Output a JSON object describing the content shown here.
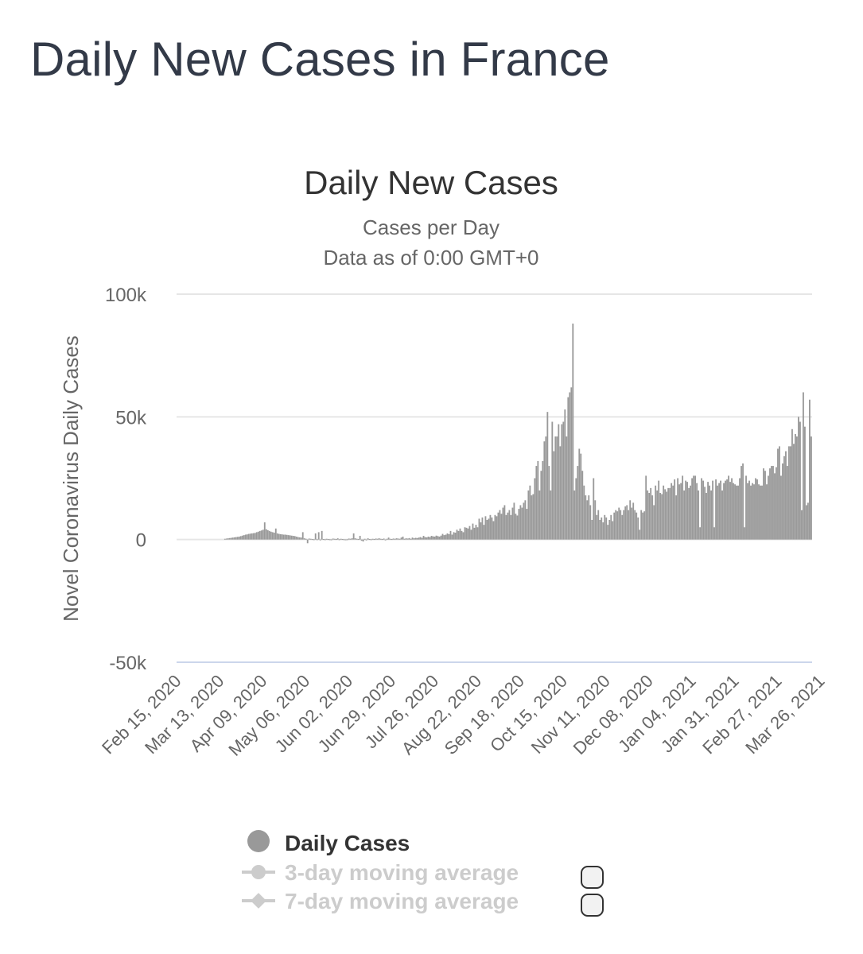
{
  "page_title": "Daily New Cases in France",
  "colors": {
    "bar": "#999999",
    "grid": "#e6e6e6",
    "text": "#333333",
    "muted": "#666666",
    "legend_off": "#cccccc"
  },
  "chart_data": {
    "type": "bar",
    "title": "Daily New Cases",
    "subtitle": [
      "Cases per Day",
      "Data as of 0:00 GMT+0"
    ],
    "ylabel": "Novel Coronavirus Daily Cases",
    "xlabel": "",
    "ylim": [
      -50000,
      100000
    ],
    "y_ticks": [
      -50000,
      0,
      50000,
      100000
    ],
    "y_tick_labels": [
      "-50k",
      "0",
      "50k",
      "100k"
    ],
    "x_tick_labels": [
      "Feb 15, 2020",
      "Mar 13, 2020",
      "Apr 09, 2020",
      "May 06, 2020",
      "Jun 02, 2020",
      "Jun 29, 2020",
      "Jul 26, 2020",
      "Aug 22, 2020",
      "Sep 18, 2020",
      "Oct 15, 2020",
      "Nov 11, 2020",
      "Dec 08, 2020",
      "Jan 04, 2021",
      "Jan 31, 2021",
      "Feb 27, 2021",
      "Mar 26, 2021"
    ],
    "x_start_date": "2020-02-15",
    "grid": true,
    "legend_position": "bottom-center",
    "series": [
      {
        "name": "Daily Cases",
        "active": true,
        "values": [
          0,
          0,
          0,
          0,
          0,
          0,
          0,
          0,
          0,
          0,
          0,
          0,
          0,
          0,
          0,
          0,
          0,
          0,
          0,
          0,
          0,
          0,
          0,
          0,
          0,
          0,
          0,
          0,
          0,
          0,
          300,
          400,
          500,
          600,
          700,
          800,
          900,
          1000,
          1100,
          1200,
          1400,
          1600,
          1800,
          2000,
          2100,
          2300,
          2400,
          2500,
          2600,
          2700,
          3000,
          3200,
          3500,
          3700,
          4000,
          7000,
          4200,
          3800,
          3500,
          3200,
          3000,
          2800,
          4500,
          2500,
          2300,
          2200,
          2100,
          2000,
          2000,
          1900,
          1800,
          1700,
          1600,
          1500,
          1400,
          1200,
          1000,
          900,
          800,
          3000,
          500,
          300,
          -1500,
          400,
          300,
          200,
          100,
          2500,
          100,
          3000,
          -300,
          3500,
          200,
          100,
          300,
          200,
          100,
          50,
          400,
          300,
          200,
          500,
          100,
          300,
          200,
          100,
          50,
          100,
          400,
          300,
          500,
          2500,
          500,
          300,
          200,
          1500,
          -500,
          -800,
          300,
          -300,
          500,
          200,
          100,
          300,
          200,
          400,
          300,
          500,
          300,
          200,
          400,
          -300,
          300,
          800,
          300,
          200,
          400,
          300,
          500,
          400,
          300,
          800,
          1200,
          300,
          500,
          400,
          600,
          300,
          800,
          500,
          700,
          600,
          800,
          1000,
          700,
          1500,
          1000,
          900,
          1200,
          1000,
          1500,
          1300,
          1200,
          1600,
          1400,
          1200,
          1600,
          2300,
          1800,
          2000,
          2500,
          2200,
          3500,
          2000,
          3000,
          2800,
          4000,
          3500,
          4500,
          3500,
          3000,
          5000,
          4800,
          4500,
          5500,
          4000,
          6500,
          4800,
          6000,
          5000,
          8500,
          7000,
          9000,
          6000,
          9500,
          8000,
          8500,
          10000,
          9000,
          7500,
          10000,
          9500,
          11000,
          12000,
          10500,
          13000,
          14000,
          10000,
          11000,
          12000,
          10000,
          13000,
          15000,
          10500,
          9800,
          12500,
          14000,
          13000,
          15000,
          16000,
          12500,
          20000,
          22000,
          18000,
          18500,
          25000,
          30000,
          32000,
          20000,
          28000,
          32000,
          40000,
          42000,
          52000,
          30000,
          20000,
          48000,
          36000,
          42000,
          42000,
          47000,
          38000,
          47000,
          48000,
          53000,
          42000,
          58000,
          60000,
          62000,
          88000,
          20000,
          25000,
          30000,
          37000,
          35000,
          28000,
          22000,
          18000,
          16000,
          18000,
          14000,
          8000,
          25000,
          16000,
          10000,
          12000,
          8000,
          9000,
          7000,
          10000,
          9000,
          6000,
          8000,
          10000,
          7500,
          11000,
          12000,
          11500,
          13000,
          12000,
          10000,
          12000,
          13500,
          14000,
          12000,
          16000,
          13000,
          15000,
          12000,
          11000,
          9000,
          4000,
          12000,
          11000,
          11500,
          26000,
          20000,
          19000,
          21000,
          18000,
          14000,
          22000,
          20000,
          24000,
          19000,
          18500,
          22000,
          20500,
          19500,
          21000,
          21000,
          23000,
          22000,
          24500,
          18000,
          25000,
          22500,
          23000,
          26000,
          20000,
          24000,
          23500,
          21000,
          22000,
          25000,
          26000,
          26000,
          23000,
          20000,
          5000,
          25000,
          24000,
          21500,
          19000,
          23500,
          22000,
          20000,
          24000,
          5000,
          24500,
          22000,
          23000,
          24000,
          20000,
          23000,
          24000,
          24500,
          26000,
          23500,
          25000,
          23000,
          22500,
          22000,
          22000,
          25000,
          30000,
          31000,
          5000,
          26000,
          23000,
          24000,
          22000,
          23000,
          22500,
          25000,
          24500,
          22500,
          22000,
          22000,
          29000,
          28000,
          22500,
          26000,
          29000,
          30000,
          30000,
          27000,
          29500,
          37000,
          38000,
          26000,
          31000,
          34000,
          36000,
          30000,
          38000,
          38000,
          45000,
          39000,
          43000,
          42000,
          50000,
          48000,
          12000,
          60000,
          46000,
          14000,
          15000,
          57000,
          42000
        ]
      },
      {
        "name": "3-day moving average",
        "active": false
      },
      {
        "name": "7-day moving average",
        "active": false
      }
    ]
  }
}
